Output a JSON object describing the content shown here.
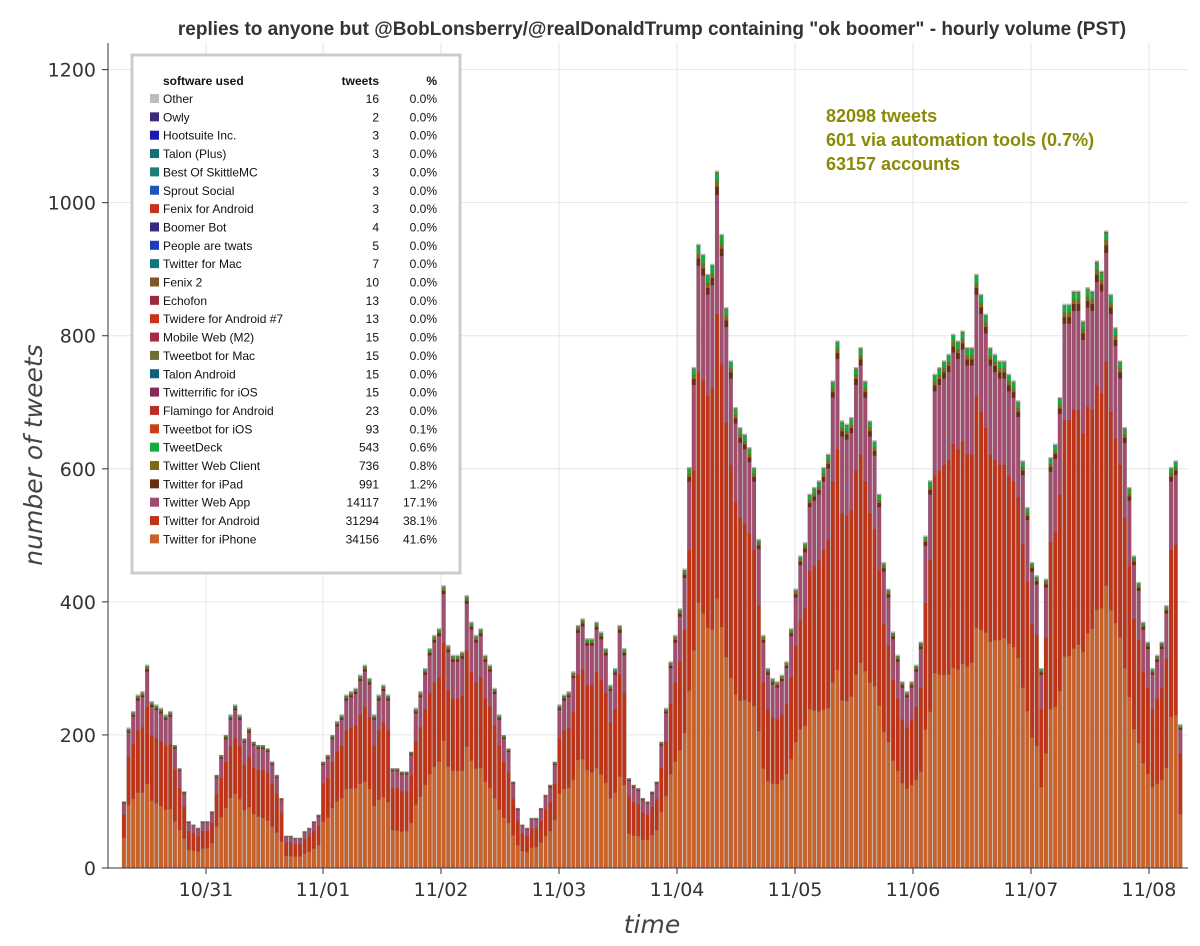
{
  "chart_data": {
    "type": "bar",
    "stacked": true,
    "title": "replies to anyone but @BobLonsberry/@realDonaldTrump containing \"ok boomer\" - hourly volume (PST)",
    "xlabel": "time",
    "ylabel": "number of tweets",
    "ylim": [
      0,
      1240
    ],
    "yticks": [
      0,
      200,
      400,
      600,
      800,
      1000,
      1200
    ],
    "xticks": [
      "10/31",
      "11/01",
      "11/02",
      "11/03",
      "11/04",
      "11/05",
      "11/06",
      "11/07",
      "11/08"
    ],
    "grid": true,
    "legend_placement": "top-left",
    "totals": [
      100,
      210,
      235,
      260,
      265,
      305,
      250,
      245,
      240,
      230,
      235,
      185,
      150,
      115,
      70,
      65,
      60,
      70,
      70,
      85,
      140,
      170,
      200,
      230,
      245,
      230,
      195,
      210,
      190,
      185,
      185,
      180,
      160,
      140,
      105,
      48,
      48,
      45,
      45,
      55,
      60,
      70,
      80,
      160,
      170,
      200,
      220,
      230,
      260,
      265,
      270,
      290,
      305,
      285,
      230,
      260,
      275,
      260,
      150,
      150,
      145,
      145,
      175,
      240,
      265,
      300,
      330,
      350,
      360,
      425,
      335,
      320,
      320,
      325,
      410,
      370,
      350,
      360,
      320,
      305,
      270,
      230,
      200,
      180,
      130,
      90,
      65,
      60,
      75,
      75,
      90,
      110,
      125,
      160,
      245,
      260,
      265,
      295,
      365,
      375,
      345,
      345,
      370,
      355,
      330,
      275,
      300,
      365,
      330,
      135,
      125,
      120,
      105,
      100,
      115,
      130,
      190,
      240,
      310,
      350,
      390,
      450,
      600,
      750,
      935,
      920,
      890,
      905,
      1045,
      950,
      840,
      760,
      690,
      660,
      650,
      630,
      600,
      495,
      350,
      300,
      285,
      280,
      290,
      310,
      360,
      420,
      470,
      490,
      560,
      570,
      580,
      600,
      620,
      730,
      790,
      670,
      665,
      675,
      750,
      780,
      730,
      670,
      640,
      560,
      460,
      420,
      355,
      320,
      280,
      265,
      280,
      305,
      340,
      500,
      580,
      740,
      750,
      760,
      770,
      800,
      790,
      805,
      780,
      780,
      890,
      860,
      830,
      780,
      770,
      760,
      760,
      740,
      730,
      700,
      610,
      540,
      460,
      440,
      300,
      435,
      615,
      635,
      705,
      845,
      845,
      865,
      865,
      820,
      870,
      865,
      910,
      895,
      955,
      860,
      810,
      760,
      660,
      570,
      470,
      430,
      370,
      340,
      300,
      320,
      340,
      395,
      600,
      610,
      215
    ],
    "series": [
      {
        "name": "Twitter for iPhone",
        "color": "#c9622a",
        "share": 0.416
      },
      {
        "name": "Twitter for Android",
        "color": "#bf3418",
        "share": 0.381
      },
      {
        "name": "Twitter Web App",
        "color": "#a14d6f",
        "share": 0.171
      },
      {
        "name": "Twitter for iPad",
        "color": "#6a2c12",
        "share": 0.012
      },
      {
        "name": "Twitter Web Client",
        "color": "#7d6a17",
        "share": 0.008
      },
      {
        "name": "TweetDeck",
        "color": "#17ab3f",
        "share": 0.006
      },
      {
        "name": "Tweetbot for iOS",
        "color": "#cc3d18",
        "share": 0.001
      },
      {
        "name": "Other",
        "color": "#bdbdbd",
        "share": 0.0
      }
    ],
    "legend": {
      "headers": {
        "software": "software used",
        "tweets": "tweets",
        "pct": "%"
      },
      "rows": [
        {
          "name": "Other",
          "tweets": "16",
          "pct": "0.0%",
          "color": "#bdbdbd"
        },
        {
          "name": "Owly",
          "tweets": "2",
          "pct": "0.0%",
          "color": "#3d2a78"
        },
        {
          "name": "Hootsuite Inc.",
          "tweets": "3",
          "pct": "0.0%",
          "color": "#1a1ab4"
        },
        {
          "name": "Talon (Plus)",
          "tweets": "3",
          "pct": "0.0%",
          "color": "#116f7a"
        },
        {
          "name": "Best Of SkittleMC",
          "tweets": "3",
          "pct": "0.0%",
          "color": "#1a7f76"
        },
        {
          "name": "Sprout Social",
          "tweets": "3",
          "pct": "0.0%",
          "color": "#2156b8"
        },
        {
          "name": "Fenix for Android",
          "tweets": "3",
          "pct": "0.0%",
          "color": "#c8321c"
        },
        {
          "name": "Boomer Bot",
          "tweets": "4",
          "pct": "0.0%",
          "color": "#342a80"
        },
        {
          "name": "People are twats",
          "tweets": "5",
          "pct": "0.0%",
          "color": "#1d3ac0"
        },
        {
          "name": "Twitter for Mac",
          "tweets": "7",
          "pct": "0.0%",
          "color": "#117580"
        },
        {
          "name": "Fenix 2",
          "tweets": "10",
          "pct": "0.0%",
          "color": "#82562a"
        },
        {
          "name": "Echofon",
          "tweets": "13",
          "pct": "0.0%",
          "color": "#9c2a3c"
        },
        {
          "name": "Twidere for Android #7",
          "tweets": "13",
          "pct": "0.0%",
          "color": "#c8321c"
        },
        {
          "name": "Mobile Web (M2)",
          "tweets": "15",
          "pct": "0.0%",
          "color": "#a82a45"
        },
        {
          "name": "Tweetbot for Mac",
          "tweets": "15",
          "pct": "0.0%",
          "color": "#6d6e36"
        },
        {
          "name": "Talon Android",
          "tweets": "15",
          "pct": "0.0%",
          "color": "#0f5e7a"
        },
        {
          "name": "Twitterrific for iOS",
          "tweets": "15",
          "pct": "0.0%",
          "color": "#8a2a5a"
        },
        {
          "name": "Flamingo for Android",
          "tweets": "23",
          "pct": "0.0%",
          "color": "#b83024"
        },
        {
          "name": "Tweetbot for iOS",
          "tweets": "93",
          "pct": "0.1%",
          "color": "#cc3d18"
        },
        {
          "name": "TweetDeck",
          "tweets": "543",
          "pct": "0.6%",
          "color": "#17ab3f"
        },
        {
          "name": "Twitter Web Client",
          "tweets": "736",
          "pct": "0.8%",
          "color": "#7d6a17"
        },
        {
          "name": "Twitter for iPad",
          "tweets": "991",
          "pct": "1.2%",
          "color": "#6a2c12"
        },
        {
          "name": "Twitter Web App",
          "tweets": "14117",
          "pct": "17.1%",
          "color": "#a14d6f"
        },
        {
          "name": "Twitter for Android",
          "tweets": "31294",
          "pct": "38.1%",
          "color": "#bf3418"
        },
        {
          "name": "Twitter for iPhone",
          "tweets": "34156",
          "pct": "41.6%",
          "color": "#c9622a"
        }
      ]
    },
    "annotations": [
      "82098 tweets",
      "601 via automation tools (0.7%)",
      "63157 accounts"
    ]
  }
}
